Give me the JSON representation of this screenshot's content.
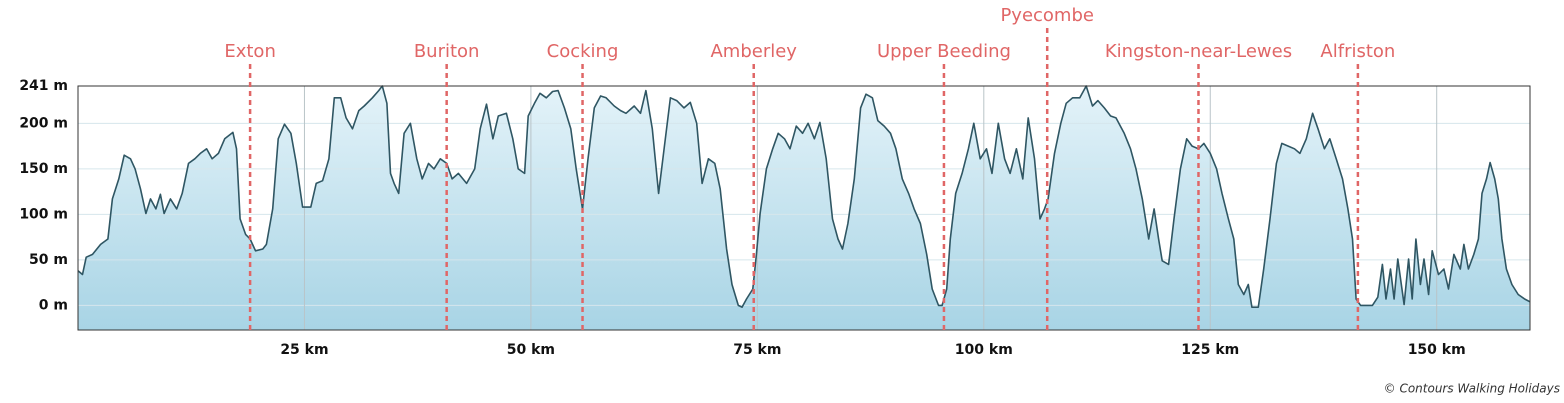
{
  "chart_data": {
    "type": "area",
    "x": [
      0,
      0.5,
      0.9,
      1.6,
      2.5,
      3.3,
      3.8,
      4.5,
      5.1,
      5.8,
      6.3,
      6.9,
      7.5,
      8.0,
      8.6,
      9.1,
      9.5,
      10.2,
      10.9,
      11.5,
      12.2,
      12.9,
      13.5,
      14.2,
      14.8,
      15.5,
      16.2,
      17.1,
      17.5,
      17.9,
      18.5,
      19.0,
      19.6,
      20.4,
      20.8,
      21.5,
      22.1,
      22.8,
      23.5,
      24.1,
      24.8,
      25.7,
      26.3,
      27.0,
      27.7,
      28.3,
      29.0,
      29.6,
      30.3,
      31.0,
      31.6,
      32.5,
      33.2,
      33.6,
      34.1,
      34.5,
      34.9,
      35.4,
      36.0,
      36.7,
      37.4,
      38.0,
      38.7,
      39.3,
      40.0,
      40.7,
      41.3,
      42.0,
      42.9,
      43.8,
      44.4,
      45.1,
      45.8,
      46.4,
      47.3,
      48.0,
      48.6,
      49.3,
      49.7,
      50.4,
      51.0,
      51.7,
      52.4,
      53.0,
      53.7,
      54.4,
      55.0,
      55.7,
      56.3,
      57.0,
      57.7,
      58.3,
      59.2,
      59.9,
      60.5,
      61.4,
      62.1,
      62.7,
      63.4,
      64.1,
      64.7,
      65.4,
      66.1,
      66.9,
      67.6,
      68.3,
      68.9,
      69.6,
      70.3,
      70.9,
      71.6,
      72.2,
      72.9,
      73.3,
      73.8,
      74.5,
      74.9,
      75.3,
      76.0,
      76.7,
      77.3,
      78.0,
      78.6,
      79.3,
      80.0,
      80.6,
      81.3,
      81.9,
      82.6,
      83.3,
      83.9,
      84.4,
      85.0,
      85.7,
      86.4,
      87.0,
      87.7,
      88.3,
      89.0,
      89.7,
      90.3,
      91.0,
      91.7,
      92.3,
      93.0,
      93.7,
      94.3,
      95.0,
      95.4,
      95.9,
      96.3,
      96.9,
      97.6,
      98.3,
      98.9,
      99.6,
      100.3,
      100.9,
      101.6,
      102.3,
      102.9,
      103.6,
      104.3,
      104.9,
      105.6,
      106.2,
      106.7,
      107.1,
      107.8,
      108.5,
      109.1,
      109.8,
      110.6,
      111.3,
      112.0,
      112.6,
      113.3,
      114.0,
      114.6,
      115.5,
      116.2,
      116.8,
      117.5,
      118.2,
      118.8,
      119.3,
      119.7,
      120.4,
      121.0,
      121.7,
      122.4,
      123.0,
      123.7,
      124.3,
      125.0,
      125.7,
      126.3,
      127.0,
      127.6,
      128.1,
      128.7,
      129.2,
      129.6,
      130.3,
      130.9,
      131.6,
      132.3,
      132.9,
      133.6,
      134.3,
      134.9,
      135.6,
      136.3,
      136.9,
      137.6,
      138.2,
      138.9,
      139.6,
      140.2,
      140.7,
      141.1,
      141.6,
      142.9,
      143.5,
      144.0,
      144.4,
      144.9,
      145.3,
      145.7,
      146.4,
      146.9,
      147.3,
      147.7,
      148.2,
      148.6,
      149.1,
      149.5,
      150.2,
      150.8,
      151.3,
      151.9,
      152.6,
      153.0,
      153.5,
      154.1,
      154.6,
      155.0,
      155.5,
      155.9,
      156.4,
      156.8,
      157.2,
      157.7,
      158.3,
      159.0,
      159.7,
      160.3
    ],
    "values": [
      38,
      34,
      53,
      56,
      67,
      73,
      117,
      139,
      165,
      161,
      150,
      128,
      101,
      117,
      106,
      122,
      101,
      117,
      106,
      123,
      156,
      161,
      167,
      172,
      161,
      167,
      183,
      190,
      172,
      95,
      78,
      73,
      60,
      62,
      67,
      106,
      183,
      199,
      189,
      156,
      108,
      108,
      134,
      137,
      161,
      228,
      228,
      206,
      194,
      214,
      219,
      228,
      236,
      241,
      222,
      145,
      134,
      123,
      189,
      200,
      161,
      139,
      156,
      150,
      161,
      156,
      139,
      145,
      134,
      150,
      194,
      221,
      183,
      208,
      211,
      183,
      150,
      145,
      208,
      222,
      233,
      228,
      235,
      236,
      217,
      194,
      150,
      106,
      161,
      217,
      230,
      228,
      219,
      214,
      211,
      219,
      211,
      236,
      194,
      123,
      172,
      228,
      225,
      217,
      223,
      200,
      134,
      161,
      156,
      128,
      62,
      23,
      0,
      -2,
      7,
      18,
      56,
      101,
      150,
      172,
      189,
      183,
      172,
      197,
      189,
      200,
      183,
      201,
      161,
      95,
      73,
      62,
      90,
      139,
      217,
      232,
      228,
      203,
      197,
      189,
      172,
      139,
      123,
      106,
      90,
      56,
      18,
      0,
      0,
      18,
      73,
      123,
      145,
      172,
      200,
      161,
      172,
      145,
      200,
      161,
      145,
      172,
      139,
      206,
      161,
      95,
      106,
      117,
      167,
      200,
      222,
      228,
      228,
      241,
      219,
      225,
      217,
      208,
      206,
      189,
      172,
      150,
      117,
      73,
      106,
      73,
      49,
      45,
      95,
      150,
      183,
      175,
      172,
      178,
      167,
      150,
      123,
      95,
      73,
      23,
      12,
      23,
      -2,
      -2,
      40,
      95,
      156,
      178,
      175,
      172,
      167,
      183,
      211,
      194,
      172,
      183,
      161,
      139,
      106,
      73,
      7,
      0,
      0,
      9,
      45,
      7,
      40,
      7,
      51,
      1,
      51,
      7,
      73,
      23,
      51,
      12,
      60,
      34,
      40,
      18,
      56,
      40,
      67,
      40,
      56,
      73,
      123,
      139,
      157,
      139,
      117,
      73,
      40,
      23,
      12,
      7,
      4
    ],
    "color": "#2f5663",
    "xlim": [
      0,
      160.3
    ],
    "ylim": [
      -27,
      241
    ],
    "xticks": [
      {
        "value": 25,
        "label": "25 km"
      },
      {
        "value": 50,
        "label": "50 km"
      },
      {
        "value": 75,
        "label": "75 km"
      },
      {
        "value": 100,
        "label": "100 km"
      },
      {
        "value": 125,
        "label": "125 km"
      },
      {
        "value": 150,
        "label": "150 km"
      }
    ],
    "yticks": [
      {
        "value": 0,
        "label": "0 m"
      },
      {
        "value": 50,
        "label": "50 m"
      },
      {
        "value": 100,
        "label": "100 m"
      },
      {
        "value": 150,
        "label": "150 m"
      },
      {
        "value": 200,
        "label": "200 m"
      },
      {
        "value": 241,
        "label": "241 m"
      }
    ],
    "grid": true,
    "markers": [
      {
        "label": "Exton",
        "x": 19.0
      },
      {
        "label": "Buriton",
        "x": 40.7
      },
      {
        "label": "Cocking",
        "x": 55.7
      },
      {
        "label": "Amberley",
        "x": 74.6
      },
      {
        "label": "Upper Beeding",
        "x": 95.6
      },
      {
        "label": "Pyecombe",
        "x": 107.0
      },
      {
        "label": "Kingston-near-Lewes",
        "x": 123.7
      },
      {
        "label": "Alfriston",
        "x": 141.3
      }
    ],
    "marker_color": "#e06666"
  },
  "credit": "© Contours Walking Holidays"
}
